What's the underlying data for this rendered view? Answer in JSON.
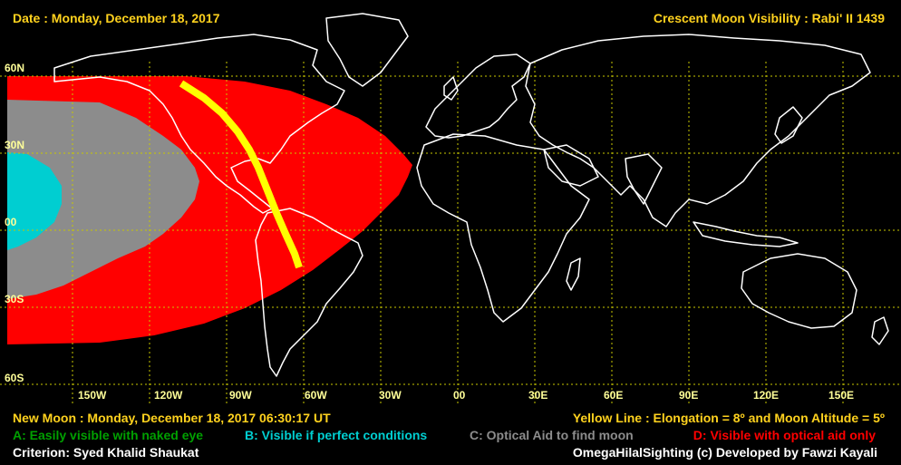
{
  "header": {
    "date": "Date : Monday, December 18, 2017",
    "title": "Crescent Moon Visibility : Rabi' II  1439"
  },
  "lat_labels": [
    "60N",
    "30N",
    "00",
    "30S",
    "60S"
  ],
  "lon_labels": [
    "150W",
    "120W",
    "90W",
    "60W",
    "30W",
    "00",
    "30E",
    "60E",
    "90E",
    "120E",
    "150E"
  ],
  "footer": {
    "new_moon": "New Moon : Monday, December 18, 2017  06:30:17  UT",
    "yellow_line": "Yellow Line : Elongation = 8º  and Moon Altitude = 5º",
    "legend_a": "A: Easily visible with naked eye",
    "legend_b": "B: Visible if perfect conditions",
    "legend_c": "C: Optical Aid to find moon",
    "legend_d": "D: Visible with optical aid only",
    "criterion": "Criterion: Syed Khalid Shaukat",
    "credit": "OmegaHilalSighting  (c)  Developed by Fawzi Kayali"
  },
  "colors": {
    "header_text": "#ffd21e",
    "zone_a": "#00a000",
    "zone_b": "#00ced1",
    "zone_c": "#8c8c8c",
    "zone_d": "#ff0000",
    "yellow_line": "#ffff00",
    "grid": "#c8c800",
    "coastline": "#ffffff"
  }
}
